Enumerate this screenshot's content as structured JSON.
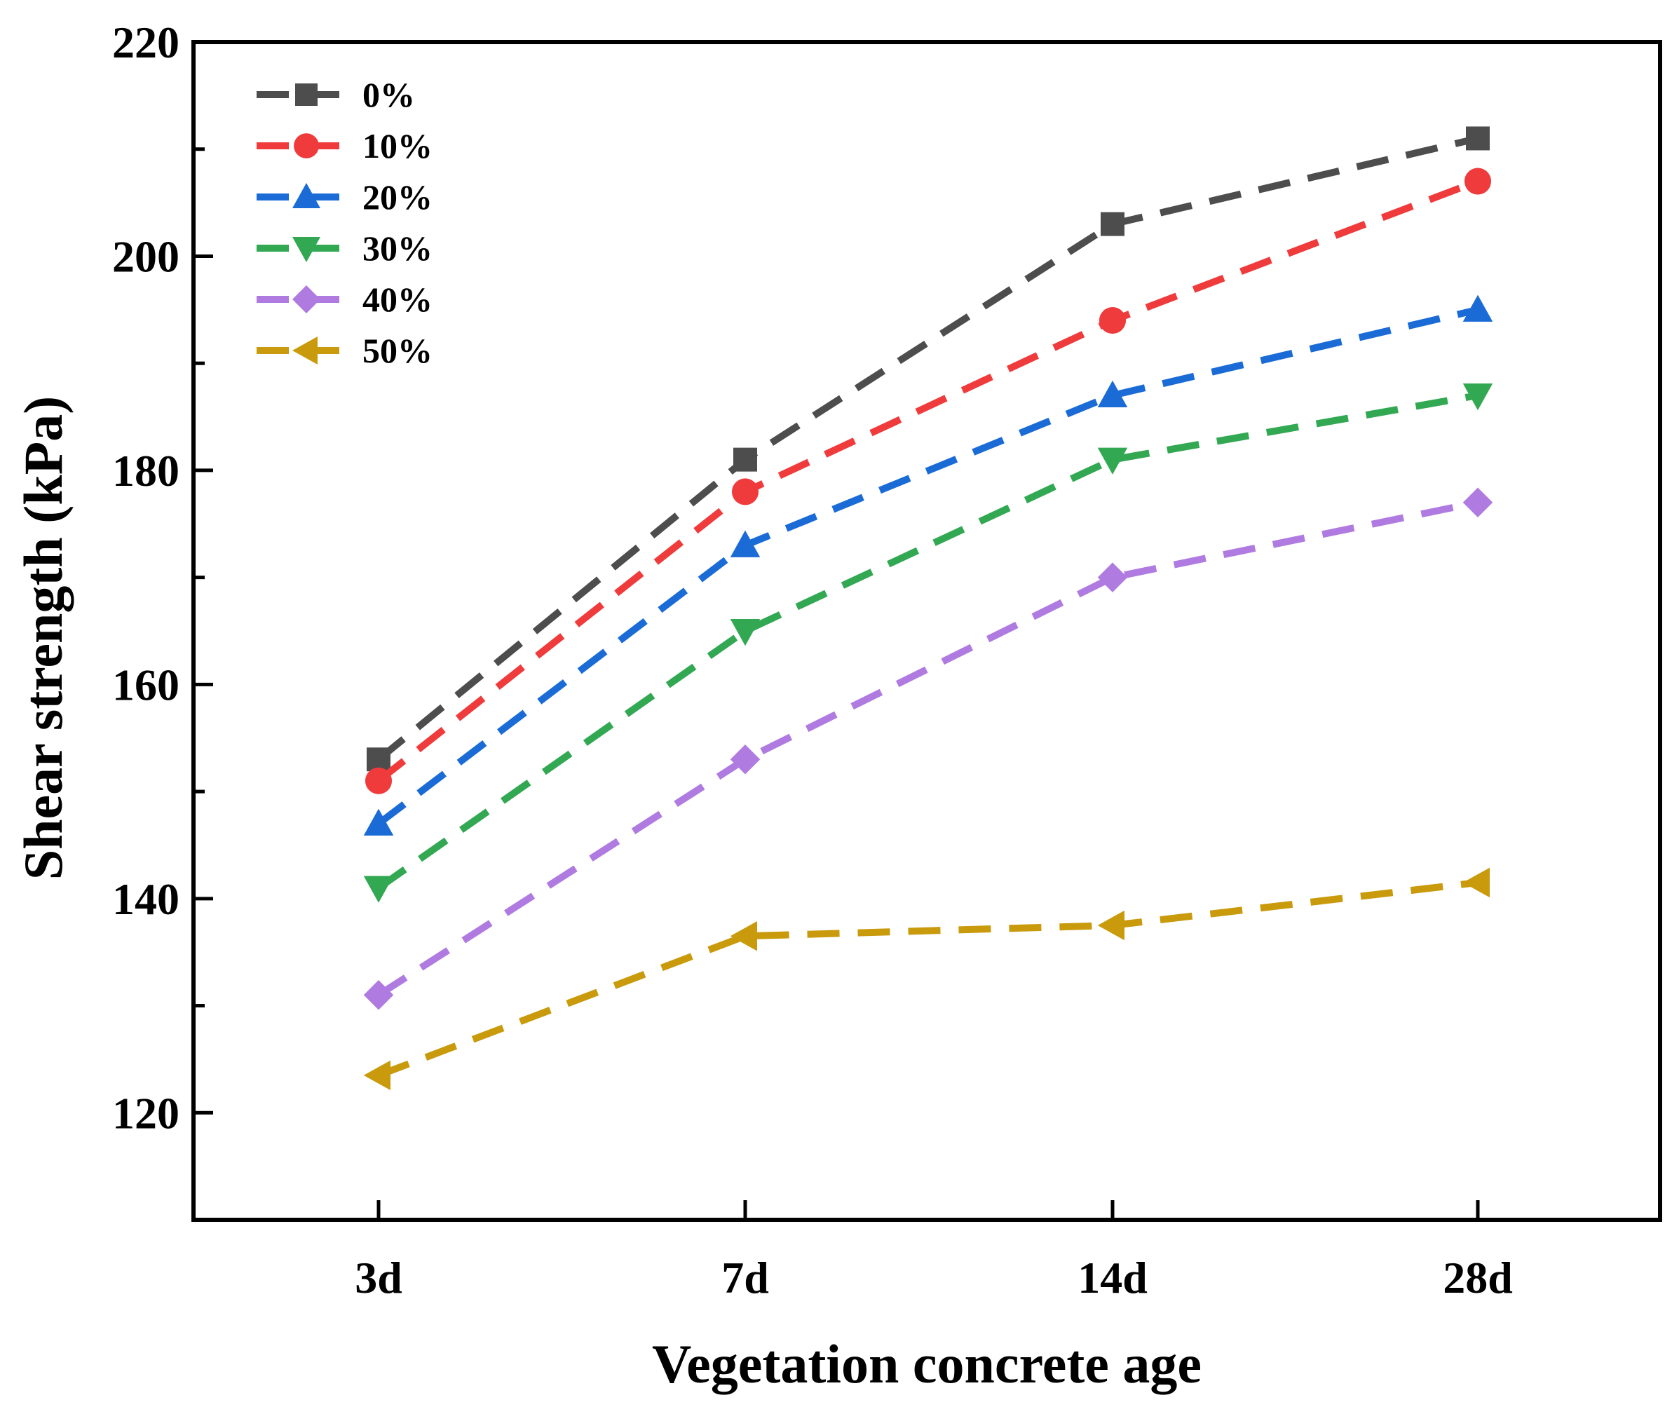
{
  "chart_data": {
    "type": "line",
    "title": "",
    "xlabel": "Vegetation concrete age",
    "ylabel": "Shear strength (kPa)",
    "categories": [
      "3d",
      "7d",
      "14d",
      "28d"
    ],
    "ylim": [
      110,
      220
    ],
    "yticks": [
      120,
      140,
      160,
      180,
      200,
      220
    ],
    "y_minor_ticks": [
      130,
      150,
      170,
      190,
      210
    ],
    "legend_position": "top-left",
    "line_style": "dashed",
    "series": [
      {
        "name": "0%",
        "label": "0%",
        "marker": "square",
        "color": "#4d4d4d",
        "values": [
          153,
          181,
          203,
          211
        ]
      },
      {
        "name": "10%",
        "label": "10%",
        "marker": "circle",
        "color": "#ef3b3b",
        "values": [
          151,
          178,
          194,
          207
        ]
      },
      {
        "name": "20%",
        "label": "20%",
        "marker": "triangle-up",
        "color": "#1a6bd6",
        "values": [
          147,
          173,
          187,
          195
        ]
      },
      {
        "name": "30%",
        "label": "30%",
        "marker": "triangle-down",
        "color": "#32a852",
        "values": [
          141,
          165,
          181,
          187
        ]
      },
      {
        "name": "40%",
        "label": " 40%",
        "marker": "diamond",
        "color": "#b07be0",
        "values": [
          131,
          153,
          170,
          177
        ]
      },
      {
        "name": "50%",
        "label": "50%",
        "marker": "triangle-left",
        "color": "#c99a0c",
        "values": [
          123.5,
          136.5,
          137.5,
          141.5
        ]
      }
    ]
  }
}
